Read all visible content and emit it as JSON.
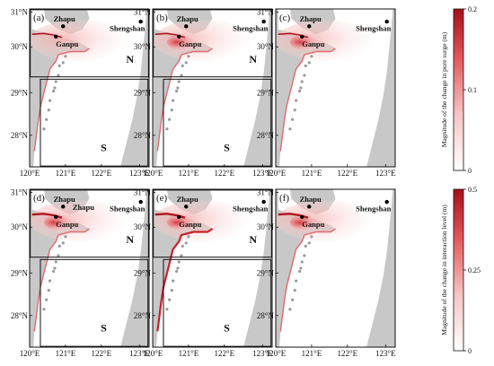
{
  "figure": {
    "lat_ticks": [
      "31°N",
      "30°N",
      "29°N",
      "28°N"
    ],
    "lon_ticks": [
      "120°E",
      "121°E",
      "122°E",
      "123°E"
    ],
    "places": {
      "zhapu": "Zhapu",
      "ganpu": "Ganpu",
      "shengshan": "Shengshan"
    },
    "region_north": "N",
    "region_south": "S",
    "panels": [
      {
        "label": "(a)",
        "boxes": true,
        "extra_zhapu_label": false
      },
      {
        "label": "(b)",
        "boxes": true,
        "extra_zhapu_label": false
      },
      {
        "label": "(c)",
        "boxes": false,
        "extra_zhapu_label": false
      },
      {
        "label": "(d)",
        "boxes": true,
        "extra_zhapu_label": true
      },
      {
        "label": "(e)",
        "boxes": true,
        "extra_zhapu_label": false
      },
      {
        "label": "(f)",
        "boxes": false,
        "extra_zhapu_label": false
      }
    ],
    "colorbars": [
      {
        "title": "Magnitude of the change in pure surge (m)",
        "ticks": [
          "0.2",
          "0.1",
          "0"
        ]
      },
      {
        "title": "Magnitude of the change in interaction level (m)",
        "ticks": [
          "0.5",
          "0.25",
          "0"
        ]
      }
    ],
    "colors": {
      "land": "#c8c8c8",
      "sea": "#ffffff",
      "max_change": "#b2141e",
      "min_change": "#ffffff"
    }
  }
}
